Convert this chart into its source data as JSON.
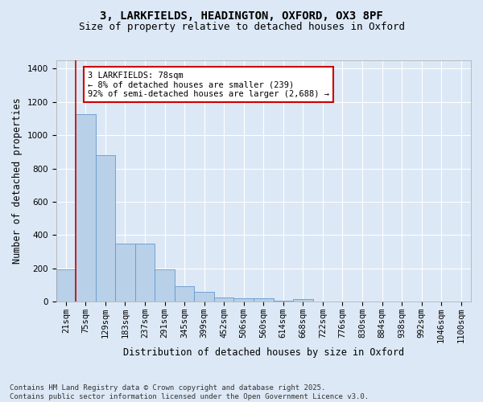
{
  "title_line1": "3, LARKFIELDS, HEADINGTON, OXFORD, OX3 8PF",
  "title_line2": "Size of property relative to detached houses in Oxford",
  "xlabel": "Distribution of detached houses by size in Oxford",
  "ylabel": "Number of detached properties",
  "bar_labels": [
    "21sqm",
    "75sqm",
    "129sqm",
    "183sqm",
    "237sqm",
    "291sqm",
    "345sqm",
    "399sqm",
    "452sqm",
    "506sqm",
    "560sqm",
    "614sqm",
    "668sqm",
    "722sqm",
    "776sqm",
    "830sqm",
    "884sqm",
    "938sqm",
    "992sqm",
    "1046sqm",
    "1100sqm"
  ],
  "bar_values": [
    195,
    1125,
    880,
    350,
    350,
    195,
    92,
    57,
    25,
    20,
    18,
    5,
    13,
    0,
    0,
    0,
    0,
    0,
    0,
    0,
    0
  ],
  "bar_color": "#b8d0e8",
  "bar_edgecolor": "#6699cc",
  "vline_x_index": 1,
  "vline_color": "#cc0000",
  "annotation_text": "3 LARKFIELDS: 78sqm\n← 8% of detached houses are smaller (239)\n92% of semi-detached houses are larger (2,688) →",
  "annotation_box_edgecolor": "#cc0000",
  "annotation_box_facecolor": "#ffffff",
  "bg_color": "#dce8f5",
  "plot_bg_color": "#dce8f5",
  "grid_color": "#ffffff",
  "footer_line1": "Contains HM Land Registry data © Crown copyright and database right 2025.",
  "footer_line2": "Contains public sector information licensed under the Open Government Licence v3.0.",
  "ylim": [
    0,
    1450
  ],
  "yticks": [
    0,
    200,
    400,
    600,
    800,
    1000,
    1200,
    1400
  ],
  "title_fontsize": 10,
  "subtitle_fontsize": 9,
  "axis_label_fontsize": 8.5,
  "tick_fontsize": 7.5,
  "annotation_fontsize": 7.5,
  "footer_fontsize": 6.5
}
